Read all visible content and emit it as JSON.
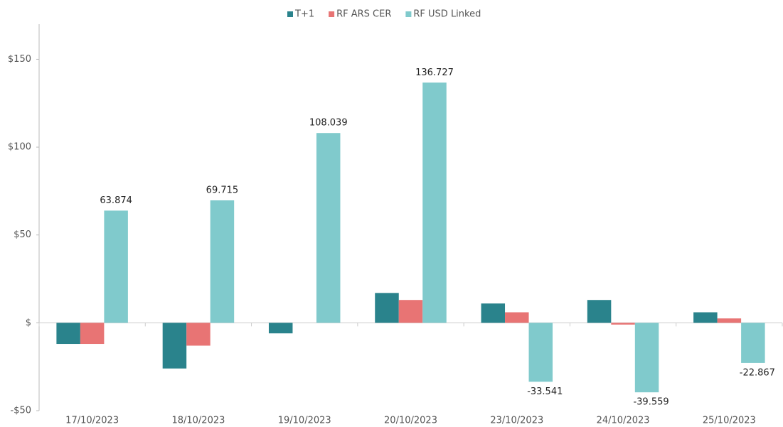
{
  "chart_data": {
    "type": "bar",
    "categories": [
      "17/10/2023",
      "18/10/2023",
      "19/10/2023",
      "20/10/2023",
      "23/10/2023",
      "24/10/2023",
      "25/10/2023"
    ],
    "series": [
      {
        "name": "T+1",
        "color": "#2a838c",
        "values": [
          -12,
          -26,
          -6,
          17,
          11,
          13,
          6
        ]
      },
      {
        "name": "RF ARS CER",
        "color": "#e87474",
        "values": [
          -12,
          -13,
          0,
          13,
          6,
          -1,
          2.5
        ]
      },
      {
        "name": "RF USD Linked",
        "color": "#80cacc",
        "values": [
          63.874,
          69.715,
          108.039,
          136.727,
          -33.541,
          -39.559,
          -22.867
        ],
        "data_labels": true
      }
    ],
    "ylim": [
      -50,
      170
    ],
    "yticks": [
      {
        "value": -50,
        "label": "-$50"
      },
      {
        "value": 0,
        "label": "$"
      },
      {
        "value": 50,
        "label": "$50"
      },
      {
        "value": 100,
        "label": "$100"
      },
      {
        "value": 150,
        "label": "$150"
      }
    ],
    "legend": "top"
  }
}
